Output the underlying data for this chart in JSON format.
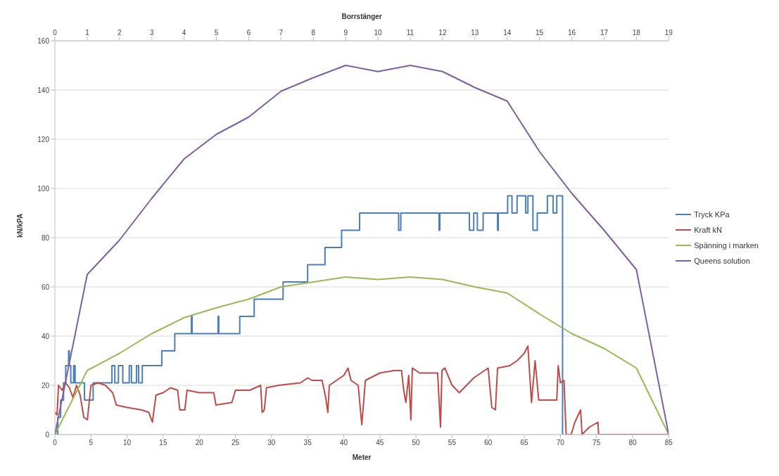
{
  "chart_data": {
    "type": "line",
    "xlabel": "Meter",
    "ylabel": "kN/kPA",
    "x2label": "Borrstänger",
    "xlim": [
      0,
      85
    ],
    "xticks": [
      0,
      5,
      10,
      15,
      20,
      25,
      30,
      35,
      40,
      45,
      50,
      55,
      60,
      65,
      70,
      75,
      80,
      85
    ],
    "x2lim": [
      0,
      19
    ],
    "x2ticks": [
      0,
      1,
      2,
      3,
      4,
      5,
      6,
      7,
      8,
      9,
      10,
      11,
      12,
      13,
      14,
      15,
      16,
      17,
      18,
      19
    ],
    "ylim": [
      0,
      160
    ],
    "yticks": [
      0,
      20,
      40,
      60,
      80,
      100,
      120,
      140,
      160
    ],
    "grid": "y",
    "legend": "right",
    "marker": "none",
    "line_style": "solid",
    "series": [
      {
        "name": "Tryck KPa",
        "type": "step",
        "color": "#4a7ebb",
        "x": [
          0,
          0.4,
          0.8,
          1.2,
          1.5,
          1.9,
          2.0,
          2.2,
          2.6,
          2.8,
          4.1,
          5.3,
          7.9,
          8.3,
          8.8,
          9.4,
          10.3,
          10.6,
          11.3,
          11.6,
          12.1,
          13.3,
          14.8,
          16.6,
          18.9,
          19.0,
          22.6,
          22.7,
          25.6,
          27.6,
          31.6,
          35.0,
          37.4,
          39.7,
          42.2,
          47.6,
          47.9,
          53.2,
          53.3,
          57.4,
          58.0,
          58.5,
          59.3,
          61.3,
          61.4,
          62.7,
          63.3,
          64.0,
          65.2,
          65.5,
          66.2,
          66.8,
          68.2,
          69.0,
          69.5,
          70.3
        ],
        "values": [
          0,
          7,
          14,
          21,
          28,
          34,
          28,
          21,
          28,
          21,
          14,
          21,
          28,
          21,
          28,
          21,
          28,
          21,
          28,
          21,
          28,
          28,
          34,
          41,
          48,
          41,
          48,
          41,
          48,
          55,
          62,
          69,
          76,
          83,
          90,
          83,
          90,
          83,
          90,
          83,
          90,
          83,
          90,
          83,
          90,
          97,
          90,
          97,
          90,
          97,
          83,
          90,
          97,
          90,
          97,
          0
        ]
      },
      {
        "name": "Kraft kN",
        "color": "#be4b48",
        "x": [
          0,
          0.3,
          0.5,
          1,
          1.5,
          2,
          2.5,
          3,
          3.5,
          4,
          4.5,
          5,
          6,
          7,
          8,
          8.5,
          10,
          12,
          13,
          13.5,
          14,
          15,
          16,
          17,
          17.3,
          18,
          18.3,
          20,
          22,
          22.3,
          24.5,
          25,
          27,
          28.5,
          28.7,
          29,
          29.3,
          31,
          34,
          35,
          35.6,
          36,
          37,
          37.5,
          37.8,
          38,
          40,
          40.6,
          41,
          42,
          42.5,
          43,
          45,
          47,
          48,
          48.3,
          48.6,
          49,
          49.3,
          49.5,
          50.5,
          52,
          53,
          53.4,
          53.6,
          54,
          55,
          56,
          58,
          59,
          60,
          60.5,
          61,
          61.3,
          63,
          64,
          65,
          65.5,
          66,
          66.5,
          67,
          69.5,
          69.7,
          70,
          70.5,
          70.8,
          71.5,
          72,
          72.8,
          73,
          74,
          75.2,
          75.3,
          85
        ],
        "values": [
          9,
          8,
          20,
          18,
          21,
          19,
          15,
          20,
          16,
          7,
          6,
          20,
          21,
          20,
          17,
          12,
          11,
          10,
          9,
          5,
          16,
          17,
          19,
          18,
          10,
          10,
          18,
          17,
          17,
          12,
          13,
          18,
          18,
          20,
          9,
          10,
          19,
          20,
          21,
          23,
          22,
          22,
          22,
          15,
          9,
          20,
          24,
          27,
          22,
          20,
          4,
          22,
          25,
          26,
          26,
          18,
          13,
          24,
          6,
          27,
          25,
          25,
          25,
          3,
          26,
          27,
          20,
          17,
          23,
          25,
          27,
          11,
          10,
          27,
          28,
          30,
          33,
          36,
          13,
          30,
          14,
          14,
          28,
          21,
          22,
          0,
          0,
          5,
          10,
          0,
          3,
          5,
          0,
          0
        ]
      },
      {
        "name": "Spänning i marken",
        "color": "#98b954",
        "axis": "x2",
        "x": [
          0,
          1,
          2,
          3,
          4,
          5,
          6,
          7,
          8,
          9,
          10,
          11,
          12,
          13,
          14,
          15,
          16,
          17,
          18,
          19
        ],
        "values": [
          0,
          26,
          33,
          41,
          47.5,
          51.5,
          55,
          60,
          62,
          64,
          63,
          64,
          63,
          60,
          57.5,
          49,
          41,
          35,
          27,
          0
        ]
      },
      {
        "name": "Queens solution",
        "color": "#7d60a0",
        "axis": "x2",
        "x": [
          0,
          1,
          2,
          3,
          4,
          5,
          6,
          7,
          8,
          9,
          10,
          11,
          12,
          13,
          14,
          15,
          16,
          17,
          18,
          19
        ],
        "values": [
          0,
          65,
          79,
          96,
          112,
          122,
          129,
          139.5,
          145,
          150,
          147.5,
          150,
          147.5,
          141,
          135.5,
          115,
          98,
          83,
          67,
          0
        ]
      }
    ]
  }
}
